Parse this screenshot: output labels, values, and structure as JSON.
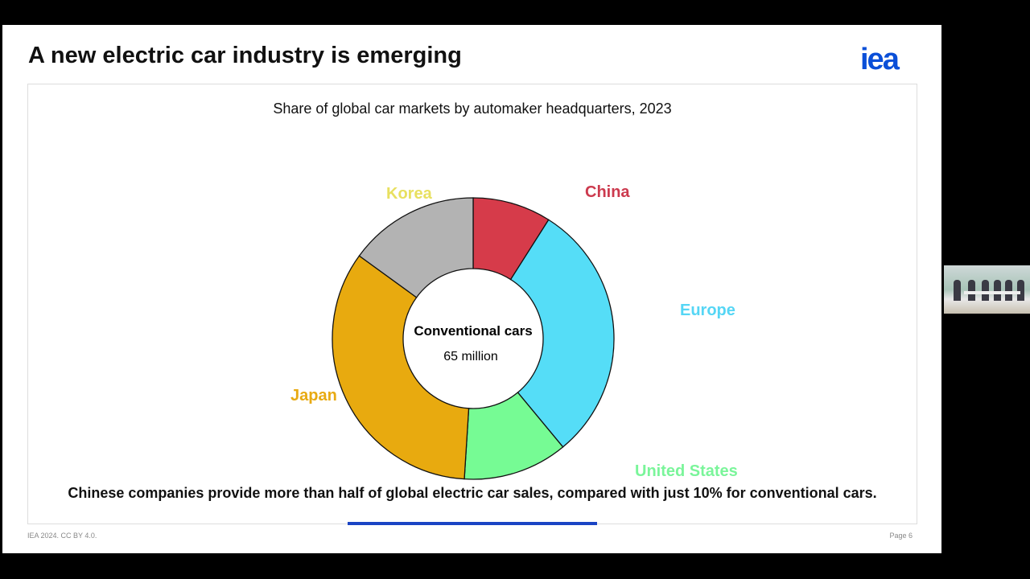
{
  "slide": {
    "title": "A new electric car industry is emerging",
    "logo": "iea",
    "caption": "Chinese companies provide more than half of global electric car sales, compared with just 10% for conventional cars.",
    "footer_left": "IEA 2024. CC BY 4.0.",
    "footer_right": "Page 6",
    "video_progress": 0.28
  },
  "chart_data": {
    "type": "pie",
    "donut": true,
    "title": "Share of global car markets by automaker headquarters, 2023",
    "center_label": "Conventional cars",
    "center_value": "65 million",
    "unit": "%",
    "categories": [
      "China",
      "Europe",
      "United States",
      "Japan",
      "Korea"
    ],
    "values": [
      9,
      30,
      12,
      34,
      15
    ],
    "colors": [
      "#d63b4a",
      "#55ddf7",
      "#76fb94",
      "#e8aa0f",
      "#b3b3b3"
    ],
    "label_colors": [
      "#cc3a4e",
      "#55d6f5",
      "#7af59a",
      "#e8aa12",
      "#e8e060"
    ]
  }
}
